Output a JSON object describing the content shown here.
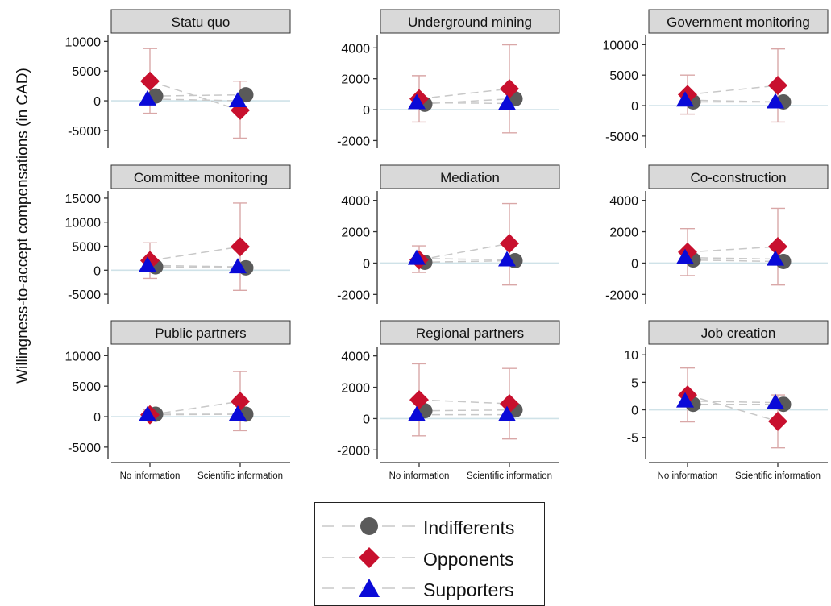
{
  "figure": {
    "ylabel": "Willingness-to-accept compensations (in CAD)",
    "colors": {
      "indifferents": "#5a5a5a",
      "opponents": "#c8102e",
      "supporters": "#0a0ad8",
      "ci": "#d9a7a7",
      "zero_line": "#cfe2e8",
      "dash": "#c8c8c8",
      "panel_header": "#d9d9d9"
    }
  },
  "legend": {
    "items": [
      {
        "label": "Indifferents",
        "marker": "circle"
      },
      {
        "label": "Opponents",
        "marker": "diamond"
      },
      {
        "label": "Supporters",
        "marker": "triangle"
      }
    ]
  },
  "chart_data": [
    {
      "type": "scatter",
      "title": "Statu quo",
      "categories": [
        "No information",
        "Scientific information"
      ],
      "yticks": [
        10000,
        5000,
        0,
        -5000
      ],
      "ylim": [
        -8000,
        11000
      ],
      "series": [
        {
          "name": "Indifferents",
          "values": [
            800,
            1000
          ]
        },
        {
          "name": "Opponents",
          "values": [
            3300,
            -1600
          ],
          "ci_low": [
            -2100,
            -6300
          ],
          "ci_high": [
            8800,
            3300
          ]
        },
        {
          "name": "Supporters",
          "values": [
            300,
            0
          ]
        }
      ]
    },
    {
      "type": "scatter",
      "title": "Underground mining",
      "categories": [
        "No information",
        "Scientific information"
      ],
      "yticks": [
        4000,
        2000,
        0,
        -2000
      ],
      "ylim": [
        -2500,
        4800
      ],
      "series": [
        {
          "name": "Indifferents",
          "values": [
            350,
            700
          ]
        },
        {
          "name": "Opponents",
          "values": [
            700,
            1350
          ],
          "ci_low": [
            -800,
            -1500
          ],
          "ci_high": [
            2200,
            4200
          ]
        },
        {
          "name": "Supporters",
          "values": [
            450,
            400
          ]
        }
      ]
    },
    {
      "type": "scatter",
      "title": "Government monitoring",
      "categories": [
        "No information",
        "Scientific information"
      ],
      "yticks": [
        10000,
        5000,
        0,
        -5000
      ],
      "ylim": [
        -7000,
        11500
      ],
      "series": [
        {
          "name": "Indifferents",
          "values": [
            600,
            600
          ]
        },
        {
          "name": "Opponents",
          "values": [
            1800,
            3300
          ],
          "ci_low": [
            -1400,
            -2700
          ],
          "ci_high": [
            5000,
            9300
          ]
        },
        {
          "name": "Supporters",
          "values": [
            900,
            600
          ]
        }
      ]
    },
    {
      "type": "scatter",
      "title": "Committee monitoring",
      "categories": [
        "No information",
        "Scientific information"
      ],
      "yticks": [
        15000,
        10000,
        5000,
        0,
        -5000
      ],
      "ylim": [
        -7000,
        16500
      ],
      "series": [
        {
          "name": "Indifferents",
          "values": [
            700,
            500
          ]
        },
        {
          "name": "Opponents",
          "values": [
            2000,
            4900
          ],
          "ci_low": [
            -1700,
            -4200
          ],
          "ci_high": [
            5700,
            14000
          ]
        },
        {
          "name": "Supporters",
          "values": [
            1000,
            700
          ]
        }
      ]
    },
    {
      "type": "scatter",
      "title": "Mediation",
      "categories": [
        "No information",
        "Scientific information"
      ],
      "yticks": [
        4000,
        2000,
        0,
        -2000
      ],
      "ylim": [
        -2600,
        4600
      ],
      "series": [
        {
          "name": "Indifferents",
          "values": [
            50,
            150
          ]
        },
        {
          "name": "Opponents",
          "values": [
            200,
            1250
          ],
          "ci_low": [
            -600,
            -1400
          ],
          "ci_high": [
            1100,
            3800
          ]
        },
        {
          "name": "Supporters",
          "values": [
            300,
            200
          ]
        }
      ]
    },
    {
      "type": "scatter",
      "title": "Co-construction",
      "categories": [
        "No information",
        "Scientific information"
      ],
      "yticks": [
        4000,
        2000,
        0,
        -2000
      ],
      "ylim": [
        -2600,
        4600
      ],
      "series": [
        {
          "name": "Indifferents",
          "values": [
            200,
            100
          ]
        },
        {
          "name": "Opponents",
          "values": [
            700,
            1050
          ],
          "ci_low": [
            -800,
            -1400
          ],
          "ci_high": [
            2200,
            3500
          ]
        },
        {
          "name": "Supporters",
          "values": [
            350,
            250
          ]
        }
      ]
    },
    {
      "type": "scatter",
      "title": "Public partners",
      "categories": [
        "No information",
        "Scientific information"
      ],
      "yticks": [
        10000,
        5000,
        0,
        -5000
      ],
      "ylim": [
        -7000,
        11500
      ],
      "series": [
        {
          "name": "Indifferents",
          "values": [
            400,
            400
          ]
        },
        {
          "name": "Opponents",
          "values": [
            300,
            2500
          ],
          "ci_low": [
            -500,
            -2300
          ],
          "ci_high": [
            1100,
            7400
          ]
        },
        {
          "name": "Supporters",
          "values": [
            300,
            400
          ]
        }
      ]
    },
    {
      "type": "scatter",
      "title": "Regional partners",
      "categories": [
        "No information",
        "Scientific information"
      ],
      "yticks": [
        4000,
        2000,
        0,
        -2000
      ],
      "ylim": [
        -2600,
        4600
      ],
      "series": [
        {
          "name": "Indifferents",
          "values": [
            500,
            550
          ]
        },
        {
          "name": "Opponents",
          "values": [
            1200,
            950
          ],
          "ci_low": [
            -1100,
            -1300
          ],
          "ci_high": [
            3500,
            3200
          ]
        },
        {
          "name": "Supporters",
          "values": [
            250,
            250
          ]
        }
      ]
    },
    {
      "type": "scatter",
      "title": "Job creation",
      "categories": [
        "No information",
        "Scientific information"
      ],
      "yticks": [
        10,
        5,
        0,
        -5
      ],
      "ylim": [
        -9,
        11.5
      ],
      "series": [
        {
          "name": "Indifferents",
          "values": [
            1,
            1
          ]
        },
        {
          "name": "Opponents",
          "values": [
            2.7,
            -2.1
          ],
          "ci_low": [
            -2.2,
            -6.9
          ],
          "ci_high": [
            7.6,
            2.7
          ]
        },
        {
          "name": "Supporters",
          "values": [
            1.6,
            1.3
          ]
        }
      ]
    }
  ]
}
